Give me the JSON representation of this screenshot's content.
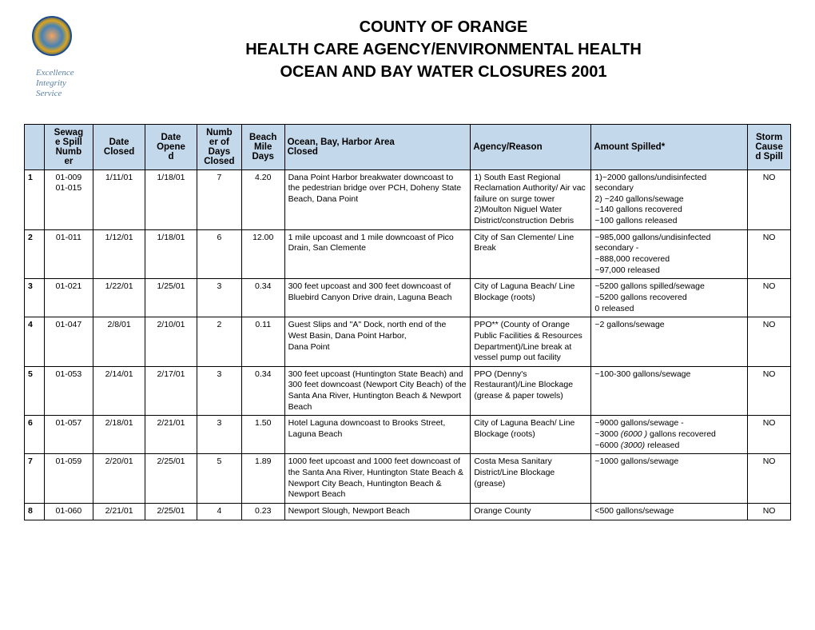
{
  "header": {
    "motto_lines": [
      "Excellence",
      "Integrity",
      "Service"
    ],
    "title1": "COUNTY OF ORANGE",
    "title2": "HEALTH CARE AGENCY/ENVIRONMENTAL HEALTH",
    "title3": "OCEAN AND BAY WATER CLOSURES 2001"
  },
  "table": {
    "columns": [
      "",
      "Sewag\ne Spill\nNumb\ner",
      "Date\nClosed",
      "Date\nOpene\nd",
      "Numb\ner of\nDays\nClosed",
      "Beach\nMile\nDays",
      "Ocean, Bay, Harbor Area\nClosed",
      "Agency/Reason",
      "Amount Spilled*",
      "Storm\nCause\nd Spill"
    ],
    "rows": [
      {
        "idx": "1",
        "spill": "01-009\n01-015",
        "closed": "1/11/01",
        "opened": "1/18/01",
        "days": "7",
        "mile": "4.20",
        "area": "Dana Point Harbor breakwater downcoast to the pedestrian bridge over PCH, Doheny State Beach, Dana Point",
        "agency": "1) South East Regional Reclamation Authority/ Air vac failure on surge tower\n2)Moulton Niguel Water District/construction Debris",
        "amount": "1)~2000    gallons/undisinfected secondary\n2) ~240 gallons/sewage\n     ~140 gallons recovered\n     ~100 gallons released",
        "storm": "NO"
      },
      {
        "idx": "2",
        "spill": "01-011",
        "closed": "1/12/01",
        "opened": "1/18/01",
        "days": "6",
        "mile": "12.00",
        "area": "1 mile upcoast and 1 mile downcoast of Pico Drain, San Clemente",
        "agency": "City of San Clemente/ Line Break",
        "amount": "~985,000 gallons/undisinfected secondary -\n~888,000 recovered\n~97,000 released",
        "storm": "NO"
      },
      {
        "idx": "3",
        "spill": "01-021",
        "closed": "1/22/01",
        "opened": "1/25/01",
        "days": "3",
        "mile": "0.34",
        "area": "300 feet upcoast and 300 feet downcoast of Bluebird Canyon Drive drain, Laguna Beach",
        "agency": "City of Laguna Beach/ Line Blockage (roots)",
        "amount": "~5200 gallons spilled/sewage\n~5200 gallons recovered\n   0 released",
        "storm": "NO"
      },
      {
        "idx": "4",
        "spill": "01-047",
        "closed": "2/8/01",
        "opened": "2/10/01",
        "days": "2",
        "mile": "0.11",
        "area": "Guest Slips and \"A\" Dock, north end of the West Basin, Dana Point Harbor,\n Dana Point",
        "agency": "PPO** (County of Orange Public Facilities & Resources Department)/Line break at vessel pump out facility",
        "amount": "~2 gallons/sewage",
        "storm": "NO"
      },
      {
        "idx": "5",
        "spill": "01-053",
        "closed": "2/14/01",
        "opened": "2/17/01",
        "days": "3",
        "mile": "0.34",
        "area": "300 feet upcoast (Huntington State Beach) and 300 feet downcoast (Newport City Beach) of the Santa Ana River, Huntington Beach & Newport Beach",
        "agency": "PPO (Denny's Restaurant)/Line Blockage (grease & paper towels)",
        "amount": "~100-300 gallons/sewage",
        "storm": "NO"
      },
      {
        "idx": "6",
        "spill": "01-057",
        "closed": "2/18/01",
        "opened": "2/21/01",
        "days": "3",
        "mile": "1.50",
        "area": "Hotel Laguna downcoast to Brooks Street, Laguna Beach",
        "agency": "City of Laguna Beach/ Line Blockage (roots)",
        "amount_html": "~9000 gallons/sewage -<br>~3000 <span class=\"italic\">(6000 )</span> gallons recovered<br>~6000 <span class=\"italic\">(3000)</span> released",
        "storm": "NO"
      },
      {
        "idx": "7",
        "spill": "01-059",
        "closed": "2/20/01",
        "opened": "2/25/01",
        "days": "5",
        "mile": "1.89",
        "area": "1000 feet upcoast and 1000 feet downcoast of the Santa Ana River, Huntington State Beach & Newport City Beach, Huntington Beach & Newport Beach",
        "agency": "Costa Mesa Sanitary District/Line Blockage (grease)",
        "amount": "~1000 gallons/sewage",
        "storm": "NO"
      },
      {
        "idx": "8",
        "spill": "01-060",
        "closed": "2/21/01",
        "opened": "2/25/01",
        "days": "4",
        "mile": "0.23",
        "area": "Newport Slough, Newport Beach",
        "agency": "Orange County",
        "amount": "<500 gallons/sewage",
        "storm": "NO"
      }
    ]
  }
}
